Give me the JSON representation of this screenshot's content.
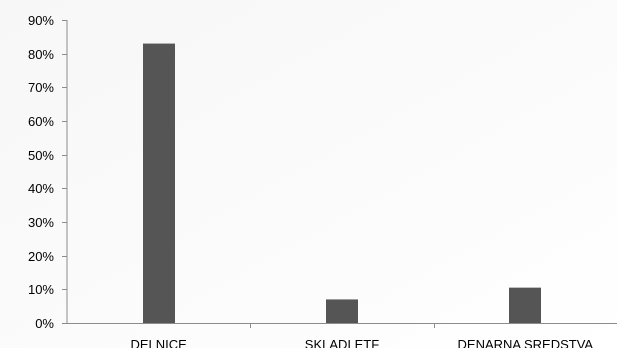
{
  "chart_data": {
    "type": "bar",
    "categories": [
      "DELNICE",
      "SKLADI ETF",
      "DENARNA SREDSTVA"
    ],
    "values": [
      83,
      7,
      10.5
    ],
    "ylim": [
      0,
      90
    ],
    "yticks": [
      0,
      10,
      20,
      30,
      40,
      50,
      60,
      70,
      80,
      90
    ],
    "ytick_labels": [
      "0%",
      "10%",
      "20%",
      "30%",
      "40%",
      "50%",
      "60%",
      "70%",
      "80%",
      "90%"
    ],
    "grid": false,
    "legend": "none",
    "bar_color": "#555555",
    "axis_color": "#8c8c8c",
    "text_color": "#000000",
    "background_color": "#ffffff"
  }
}
